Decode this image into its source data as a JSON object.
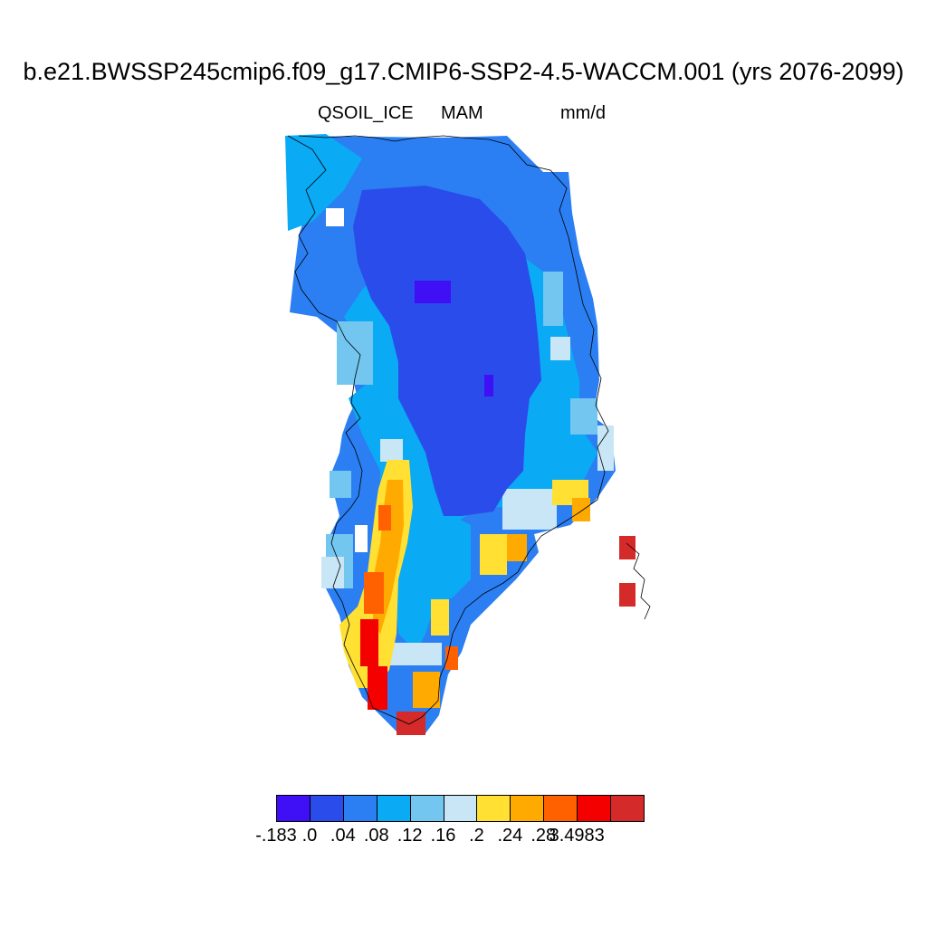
{
  "title": "b.e21.BWSSP245cmip6.f09_g17.CMIP6-SSP2-4.5-WACCM.001 (yrs 2076-2099)",
  "subtitle": {
    "variable": "QSOIL_ICE",
    "season": "MAM",
    "units": "mm/d"
  },
  "colorbar": {
    "colors": [
      "#3f0ff5",
      "#2a4ceb",
      "#2b7ff2",
      "#0aaaf5",
      "#73c6f0",
      "#c8e6f5",
      "#ffe033",
      "#ffaa00",
      "#ff6000",
      "#f50000",
      "#d42a2a"
    ],
    "labels": [
      "-.183",
      ".0",
      ".04",
      ".08",
      ".12",
      ".16",
      ".2",
      ".24",
      ".28",
      "3.4983"
    ]
  },
  "map_data": {
    "type": "gridded-field",
    "region": "Greenland",
    "value_classes": [
      "< .0",
      ".0-.04",
      ".04-.08",
      ".08-.12",
      ".12-.16",
      ".16-.2",
      ".2-.24",
      ".24-.28",
      ".28-3.4983",
      "> 3.4983"
    ],
    "dominant_pattern": "lowest values over central ice sheet; highest values along southwestern margin and southern tip"
  }
}
